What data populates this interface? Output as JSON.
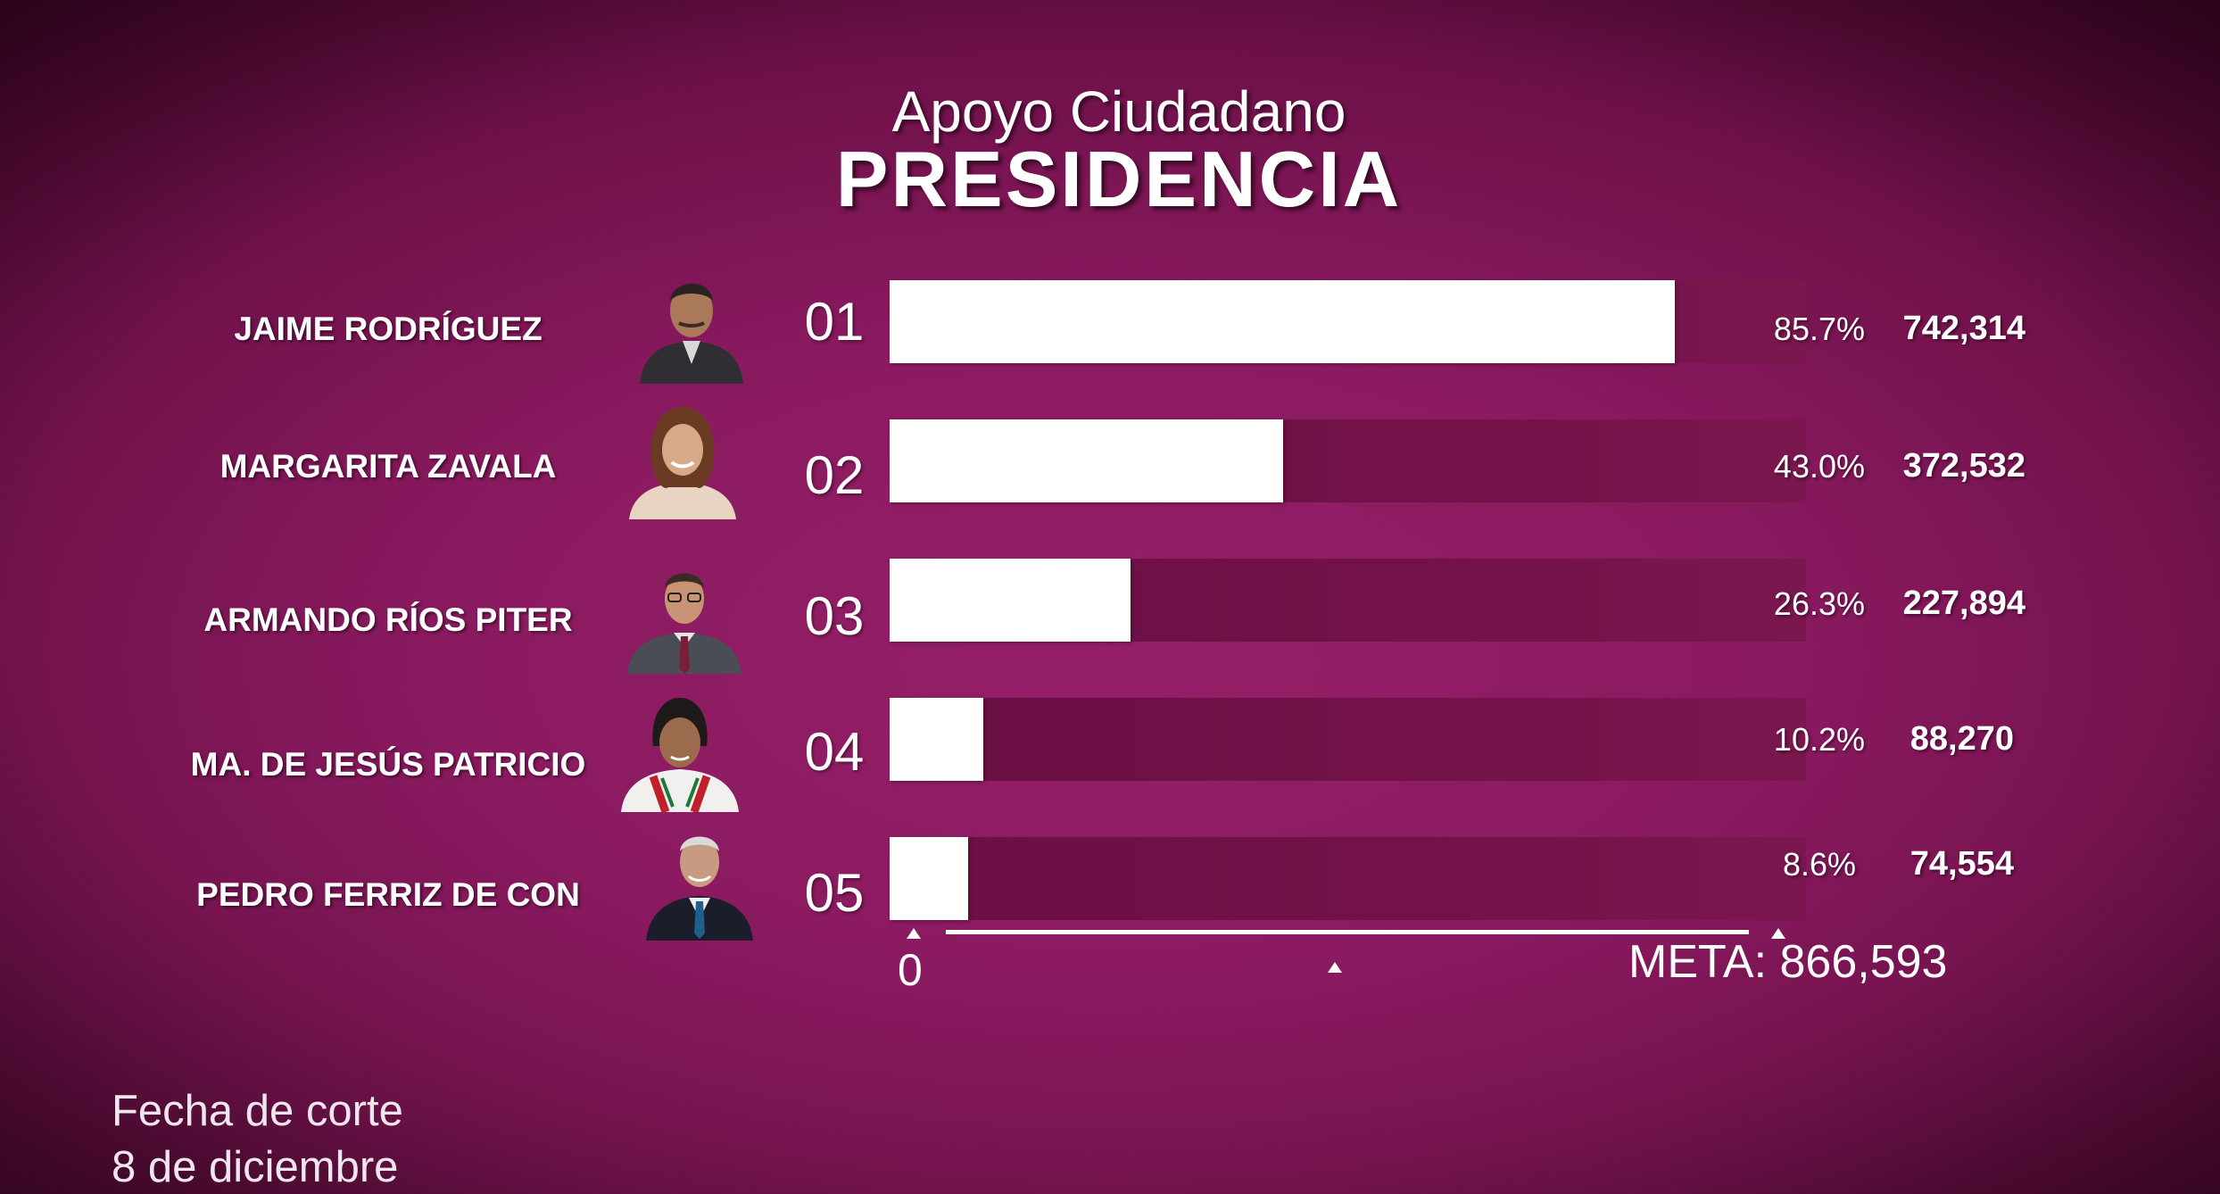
{
  "chart_data": {
    "type": "bar",
    "orientation": "horizontal",
    "title": "Apoyo Ciudadano",
    "subtitle": "PRESIDENCIA",
    "categories": [
      "JAIME RODRÍGUEZ",
      "MARGARITA ZAVALA",
      "ARMANDO RÍOS PITER",
      "MA. DE JESÚS PATRICIO",
      "PEDRO FERRIZ DE CON"
    ],
    "ranks": [
      "01",
      "02",
      "03",
      "04",
      "05"
    ],
    "values": [
      742314,
      372532,
      227894,
      88270,
      74554
    ],
    "value_labels": [
      "742,314",
      "372,532",
      "227,894",
      "88,270",
      "74,554"
    ],
    "percent_labels": [
      "85.7%",
      "43.0%",
      "26.3%",
      "10.2%",
      "8.6%"
    ],
    "percents": [
      85.7,
      43.0,
      26.3,
      10.2,
      8.6
    ],
    "xlim": [
      0,
      866593
    ],
    "axis_min_label": "0",
    "axis_max_label": "META: 866,593",
    "grid": false,
    "legend": "none",
    "colors": {
      "bar": "#ffffff",
      "track": "#731248",
      "background": "#8a1a60"
    }
  },
  "footer": {
    "line1": "Fecha de corte",
    "line2": "8 de diciembre"
  },
  "icons": [
    "portrait-jaime-rodriguez",
    "portrait-margarita-zavala",
    "portrait-armando-rios-piter",
    "portrait-maria-de-jesus-patricio",
    "portrait-pedro-ferriz-de-con"
  ]
}
